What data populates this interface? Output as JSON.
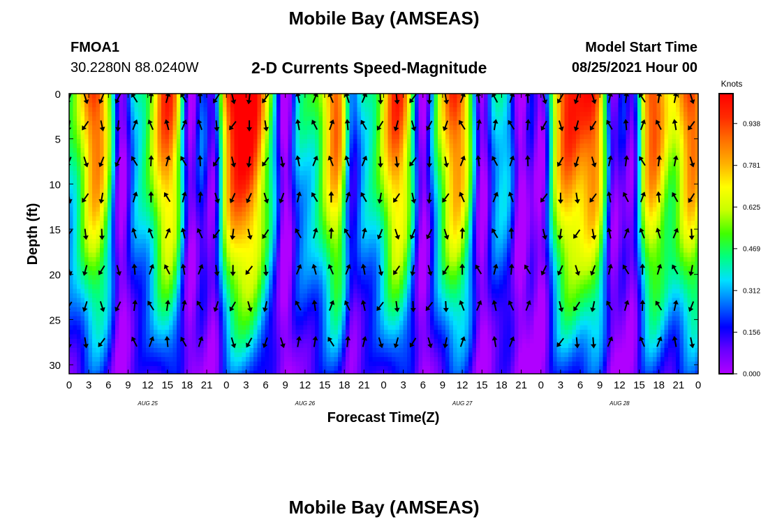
{
  "header": {
    "title": "Mobile Bay (AMSEAS)",
    "station_id": "FMOA1",
    "station_location": "30.2280N  88.0240W",
    "subtitle": "2-D Currents Speed-Magnitude",
    "model_label": "Model Start Time",
    "model_start": "08/25/2021 Hour 00",
    "footer_title": "Mobile Bay (AMSEAS)"
  },
  "colorbar": {
    "unit": "Knots",
    "tick_labels": [
      "0.000",
      "0.156",
      "0.312",
      "0.469",
      "0.625",
      "0.781",
      "0.938"
    ],
    "tick_values": [
      0.0,
      0.156,
      0.312,
      0.469,
      0.625,
      0.781,
      0.938
    ],
    "range": [
      0.0,
      1.05
    ],
    "stops": [
      "#b000ff",
      "#6a00ff",
      "#0000ff",
      "#0070ff",
      "#00e0ff",
      "#00ff80",
      "#40ff00",
      "#c8ff00",
      "#ffff00",
      "#ffb000",
      "#ff7000",
      "#ff2a00",
      "#ff0000"
    ]
  },
  "chart_data": {
    "type": "heatmap",
    "title": "2-D Currents Speed-Magnitude",
    "xlabel": "Forecast Time(Z)",
    "ylabel": "Depth (ft)",
    "x_tick_labels": [
      "0",
      "3",
      "6",
      "9",
      "12",
      "15",
      "18",
      "21",
      "0",
      "3",
      "6",
      "9",
      "12",
      "15",
      "18",
      "21",
      "0",
      "3",
      "6",
      "9",
      "12",
      "15",
      "18",
      "21",
      "0",
      "3",
      "6",
      "9",
      "12",
      "15",
      "18",
      "21",
      "0"
    ],
    "x_range_hours": [
      0,
      96
    ],
    "day_labels": [
      {
        "hour": 12,
        "label": "AUG 25"
      },
      {
        "hour": 36,
        "label": "AUG 26"
      },
      {
        "hour": 60,
        "label": "AUG 27"
      },
      {
        "hour": 84,
        "label": "AUG 28"
      }
    ],
    "y_tick_labels": [
      "0",
      "5",
      "10",
      "15",
      "20",
      "25",
      "30"
    ],
    "y_ticks": [
      0,
      5,
      10,
      15,
      20,
      25,
      30
    ],
    "ylim": [
      0,
      31
    ],
    "y_inverted": true,
    "speed_units": "knots",
    "surface_speed_peaks_hours": [
      4,
      15,
      25,
      28,
      41,
      50,
      59,
      76,
      80,
      89,
      95
    ],
    "slack_hours": [
      8,
      18.5,
      22,
      33,
      43,
      54,
      63,
      69,
      72,
      83,
      86
    ]
  }
}
